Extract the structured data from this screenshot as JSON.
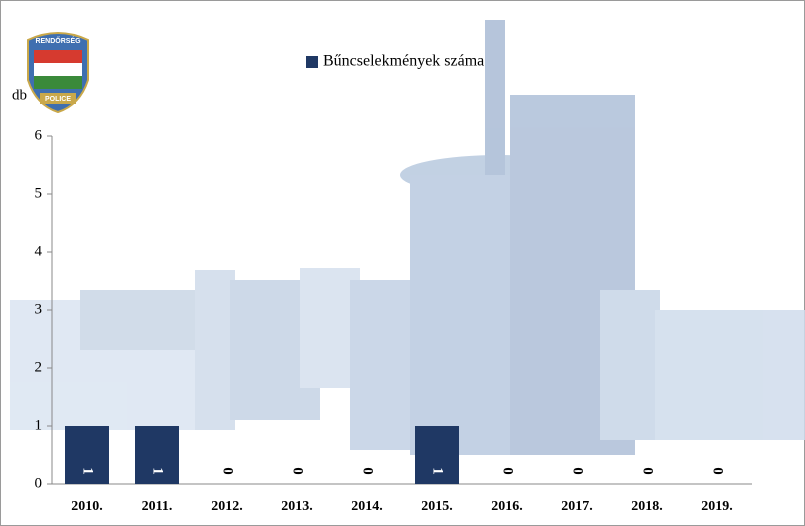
{
  "logo": {
    "top": "RENDŐRSÉG",
    "bottom": "POLICE"
  },
  "chart_data": {
    "type": "bar",
    "legend_label": "Bűncselekmények száma",
    "y_label": "db",
    "categories": [
      "2010.",
      "2011.",
      "2012.",
      "2013.",
      "2014.",
      "2015.",
      "2016.",
      "2017.",
      "2018.",
      "2019."
    ],
    "values": [
      1,
      1,
      0,
      0,
      0,
      1,
      0,
      0,
      0,
      0
    ],
    "color": "#1f3864",
    "ylim": [
      0,
      6
    ],
    "yticks": [
      0,
      1,
      2,
      3,
      4,
      5,
      6
    ],
    "grid": false
  }
}
